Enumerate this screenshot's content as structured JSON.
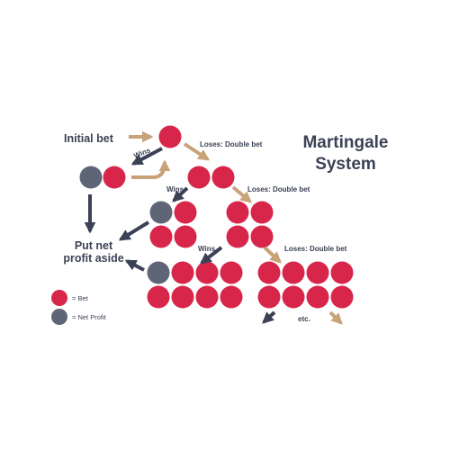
{
  "title": {
    "line1": "Martingale",
    "line2": "System"
  },
  "labels": {
    "initial_bet": "Initial bet",
    "put_net_line1": "Put net",
    "put_net_line2": "profit aside",
    "etc": "etc.",
    "wins_1": "Wins",
    "wins_2": "Wins",
    "wins_3": "Wins",
    "loses_1": "Loses: Double bet",
    "loses_2": "Loses: Double bet",
    "loses_3": "Loses: Double bet"
  },
  "legend": {
    "bet": "= Bet",
    "net_profit": "= Net Profit"
  },
  "colors": {
    "bet": "#d8264a",
    "net_profit": "#5d6577",
    "win_arrow": "#3c4256",
    "lose_arrow": "#c9a27a",
    "text": "#3c4256"
  }
}
